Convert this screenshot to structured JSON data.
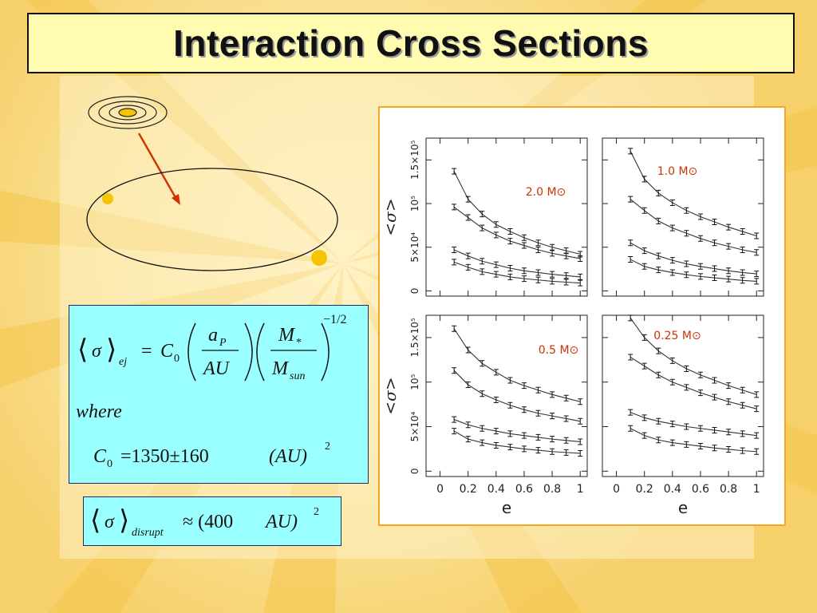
{
  "slide": {
    "title": "Interaction Cross Sections"
  },
  "equations": {
    "ej_lhs": "σ",
    "ej_lhs_sub": "ej",
    "ej_const": "C",
    "ej_const_sub": "0",
    "ej_a": "a",
    "ej_a_sub": "P",
    "ej_au": "AU",
    "ej_m": "M",
    "ej_m_sub": "*",
    "ej_msun": "M",
    "ej_msun_sub": "sun",
    "ej_exponent": "−1/2",
    "where_label": "where",
    "c0_label": "C",
    "c0_sub": "0",
    "c0_value": "=1350±160",
    "c0_unit": "(AU)",
    "c0_exp": "2",
    "disrupt_lhs": "σ",
    "disrupt_sub": "disrupt",
    "disrupt_rhs": "≈ (400",
    "disrupt_unit": "AU)",
    "disrupt_exp": "2"
  },
  "colors": {
    "background": "#f7d774",
    "title_box": "#fffcb2",
    "equation_box": "#99ffff",
    "plot_border": "#f5a623",
    "panel_label": "#cc3300",
    "arrow": "#cc3300",
    "star_dot": "#f6c500"
  },
  "chart_data": [
    {
      "type": "line",
      "panel_label": "2.0 M⊙",
      "xlabel": "",
      "ylabel": "<σ>",
      "xlim": [
        0,
        1
      ],
      "ylim": [
        0,
        175000
      ],
      "y_ticks": [
        "0",
        "5×10⁴",
        "10⁵",
        "1.5×10⁵"
      ],
      "x": [
        0.1,
        0.2,
        0.3,
        0.4,
        0.5,
        0.6,
        0.7,
        0.8,
        0.9,
        1.0
      ],
      "series": [
        {
          "values": [
            137000,
            105000,
            88000,
            76000,
            68000,
            61000,
            55000,
            50000,
            46000,
            42000
          ]
        },
        {
          "values": [
            96000,
            84000,
            72000,
            64000,
            57000,
            52000,
            47000,
            43000,
            40000,
            37000
          ]
        },
        {
          "values": [
            47000,
            40000,
            34000,
            30000,
            26000,
            23000,
            21000,
            19000,
            17500,
            16000
          ]
        },
        {
          "values": [
            33000,
            27000,
            22000,
            19000,
            16000,
            14000,
            12500,
            11000,
            10000,
            9000
          ]
        }
      ]
    },
    {
      "type": "line",
      "panel_label": "1.0 M⊙",
      "xlabel": "",
      "ylabel": "",
      "xlim": [
        0,
        1
      ],
      "ylim": [
        0,
        175000
      ],
      "x": [
        0.1,
        0.2,
        0.3,
        0.4,
        0.5,
        0.6,
        0.7,
        0.8,
        0.9,
        1.0
      ],
      "series": [
        {
          "values": [
            160000,
            128000,
            112000,
            101000,
            92000,
            85000,
            79000,
            73000,
            68000,
            63000
          ]
        },
        {
          "values": [
            105000,
            92000,
            80000,
            72000,
            66000,
            60000,
            55000,
            51000,
            47000,
            44000
          ]
        },
        {
          "values": [
            55000,
            46000,
            40000,
            35000,
            31000,
            28000,
            25500,
            23000,
            21000,
            19500
          ]
        },
        {
          "values": [
            36000,
            28000,
            24000,
            21000,
            18500,
            16500,
            15000,
            13500,
            12000,
            11000
          ]
        }
      ]
    },
    {
      "type": "line",
      "panel_label": "0.5 M⊙",
      "xlabel": "e",
      "ylabel": "<σ>",
      "xlim": [
        0,
        1
      ],
      "ylim": [
        0,
        175000
      ],
      "x_ticks": [
        "0",
        "0.2",
        "0.4",
        "0.6",
        "0.8",
        "1"
      ],
      "y_ticks": [
        "0",
        "5×10⁴",
        "10⁵",
        "1.5×10⁵"
      ],
      "x": [
        0.1,
        0.2,
        0.3,
        0.4,
        0.5,
        0.6,
        0.7,
        0.8,
        0.9,
        1.0
      ],
      "series": [
        {
          "values": [
            160000,
            136000,
            121000,
            111000,
            102000,
            96000,
            91000,
            86000,
            82000,
            78000
          ]
        },
        {
          "values": [
            113000,
            97000,
            87000,
            80000,
            74000,
            69000,
            65000,
            62000,
            59000,
            56000
          ]
        },
        {
          "values": [
            58000,
            52000,
            48000,
            45000,
            42000,
            40000,
            38000,
            36000,
            34500,
            33000
          ]
        },
        {
          "values": [
            45000,
            36000,
            32000,
            29000,
            27000,
            25000,
            23500,
            22000,
            21000,
            20000
          ]
        }
      ]
    },
    {
      "type": "line",
      "panel_label": "0.25 M⊙",
      "xlabel": "e",
      "ylabel": "",
      "xlim": [
        0,
        1
      ],
      "ylim": [
        0,
        175000
      ],
      "x_ticks": [
        "0",
        "0.2",
        "0.4",
        "0.6",
        "0.8",
        "1"
      ],
      "x": [
        0.1,
        0.2,
        0.3,
        0.4,
        0.5,
        0.6,
        0.7,
        0.8,
        0.9,
        1.0
      ],
      "series": [
        {
          "values": [
            172000,
            150000,
            135000,
            124000,
            115000,
            108000,
            102000,
            96000,
            91000,
            86000
          ]
        },
        {
          "values": [
            128000,
            118000,
            108000,
            100000,
            94000,
            88000,
            83000,
            78000,
            74000,
            70000
          ]
        },
        {
          "values": [
            66000,
            60000,
            56000,
            53000,
            50000,
            48000,
            46000,
            44000,
            42000,
            40000
          ]
        },
        {
          "values": [
            48000,
            40000,
            35000,
            32000,
            30000,
            28000,
            26000,
            24500,
            23000,
            22000
          ]
        }
      ]
    }
  ]
}
